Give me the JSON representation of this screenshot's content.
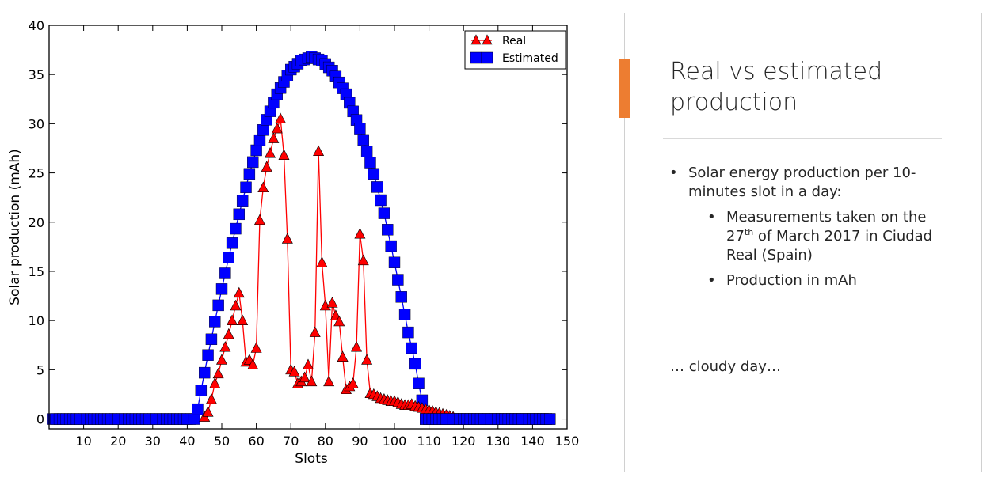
{
  "chart_data": {
    "type": "line",
    "xlabel": "Slots",
    "ylabel": "Solar production (mAh)",
    "xlim": [
      0,
      150
    ],
    "ylim": [
      -1,
      40
    ],
    "xticks": [
      10,
      20,
      30,
      40,
      50,
      60,
      70,
      80,
      90,
      100,
      110,
      120,
      130,
      140,
      150
    ],
    "yticks": [
      0,
      5,
      10,
      15,
      20,
      25,
      30,
      35,
      40
    ],
    "grid": false,
    "legend_position": "top-right",
    "series": [
      {
        "name": "Real",
        "color": "#ff0000",
        "marker": "triangle",
        "x": [
          45,
          46,
          47,
          48,
          49,
          50,
          51,
          52,
          53,
          54,
          55,
          56,
          57,
          58,
          59,
          60,
          61,
          62,
          63,
          64,
          65,
          66,
          67,
          68,
          69,
          70,
          71,
          72,
          73,
          74,
          75,
          76,
          77,
          78,
          79,
          80,
          81,
          82,
          83,
          84,
          85,
          86,
          87,
          88,
          89,
          90,
          91,
          92,
          93,
          94,
          95,
          96,
          97,
          98,
          99,
          100,
          101,
          102,
          103,
          104,
          105,
          106,
          107,
          108,
          109,
          110,
          111,
          112,
          113,
          114,
          115,
          116,
          117
        ],
        "values": [
          0.2,
          0.7,
          2.0,
          3.6,
          4.6,
          6.0,
          7.3,
          8.6,
          10.0,
          11.5,
          12.8,
          10.0,
          5.8,
          6.0,
          5.5,
          7.2,
          20.2,
          23.5,
          25.6,
          27.0,
          28.5,
          29.5,
          30.5,
          26.8,
          18.3,
          5.0,
          4.8,
          3.6,
          3.8,
          4.2,
          5.5,
          3.8,
          8.8,
          27.2,
          15.9,
          11.5,
          3.8,
          11.8,
          10.5,
          9.9,
          6.3,
          3.0,
          3.3,
          3.6,
          7.3,
          18.8,
          16.1,
          6.0,
          2.6,
          2.5,
          2.3,
          2.1,
          2.0,
          1.9,
          1.8,
          1.8,
          1.7,
          1.5,
          1.4,
          1.4,
          1.5,
          1.3,
          1.2,
          1.1,
          1.0,
          0.9,
          0.8,
          0.7,
          0.6,
          0.5,
          0.4,
          0.3,
          0.2
        ]
      },
      {
        "name": "Estimated",
        "color": "#0000ff",
        "marker": "square",
        "x_start": 1,
        "x_end": 145,
        "curve_start": 43,
        "curve_end": 108,
        "peak_x": 76,
        "peak_value": 36.8,
        "x_sample": [
          43,
          44,
          45,
          46,
          47,
          48,
          50,
          52,
          55,
          58,
          60,
          63,
          66,
          70,
          73,
          76,
          79,
          82,
          86,
          90,
          94,
          97,
          100,
          102,
          104,
          106,
          107,
          108
        ],
        "values_sample": [
          1.0,
          2.9,
          4.7,
          6.5,
          8.1,
          9.9,
          13.2,
          16.4,
          20.8,
          24.9,
          27.3,
          30.4,
          33.0,
          35.5,
          36.4,
          36.8,
          36.4,
          35.4,
          33.0,
          29.5,
          24.9,
          20.9,
          15.9,
          12.4,
          8.8,
          5.6,
          3.6,
          1.9
        ]
      }
    ]
  },
  "panel": {
    "title": "Real vs estimated production",
    "bullet_main": "Solar energy production per 10-minutes slot in a day:",
    "sub1_part1": "Measurements taken on the 27",
    "sub1_sup": "th",
    "sub1_part2": " of March 2017 in Ciudad Real (Spain)",
    "sub2": "Production in mAh",
    "note": "… cloudy day…",
    "bullet_glyph": "•",
    "accent_color": "#ed7d31"
  }
}
